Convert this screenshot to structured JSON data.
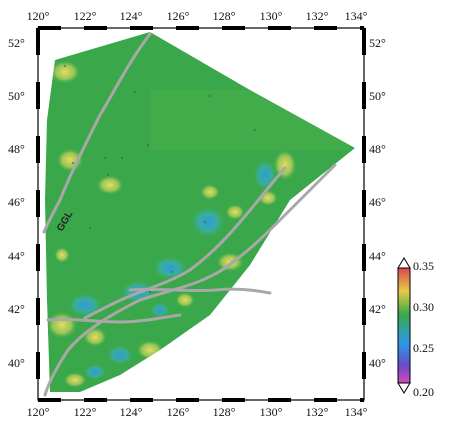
{
  "map": {
    "lon_labels": [
      "120°",
      "122°",
      "124°",
      "126°",
      "128°",
      "130°",
      "132°",
      "134°"
    ],
    "lat_labels": [
      "40°",
      "42°",
      "44°",
      "46°",
      "48°",
      "50°",
      "52°"
    ],
    "fault_label": "GGL",
    "lon_range": [
      120,
      134
    ],
    "lat_range": [
      39,
      52.5
    ]
  },
  "colorbar": {
    "labels": [
      "0.35",
      "0.30",
      "0.25",
      "0.20"
    ],
    "min": 0.2,
    "max": 0.35,
    "colors": [
      "#ffffff",
      "#d84a4a",
      "#e8d84a",
      "#2aa84a",
      "#2aa0e8",
      "#7a3ab8",
      "#ffffff"
    ]
  },
  "colors": {
    "background_field": "#3aa84a",
    "high_anomaly": "#e0d84a",
    "low_anomaly": "#3aa8e8",
    "fault": "#a8a8a8"
  }
}
